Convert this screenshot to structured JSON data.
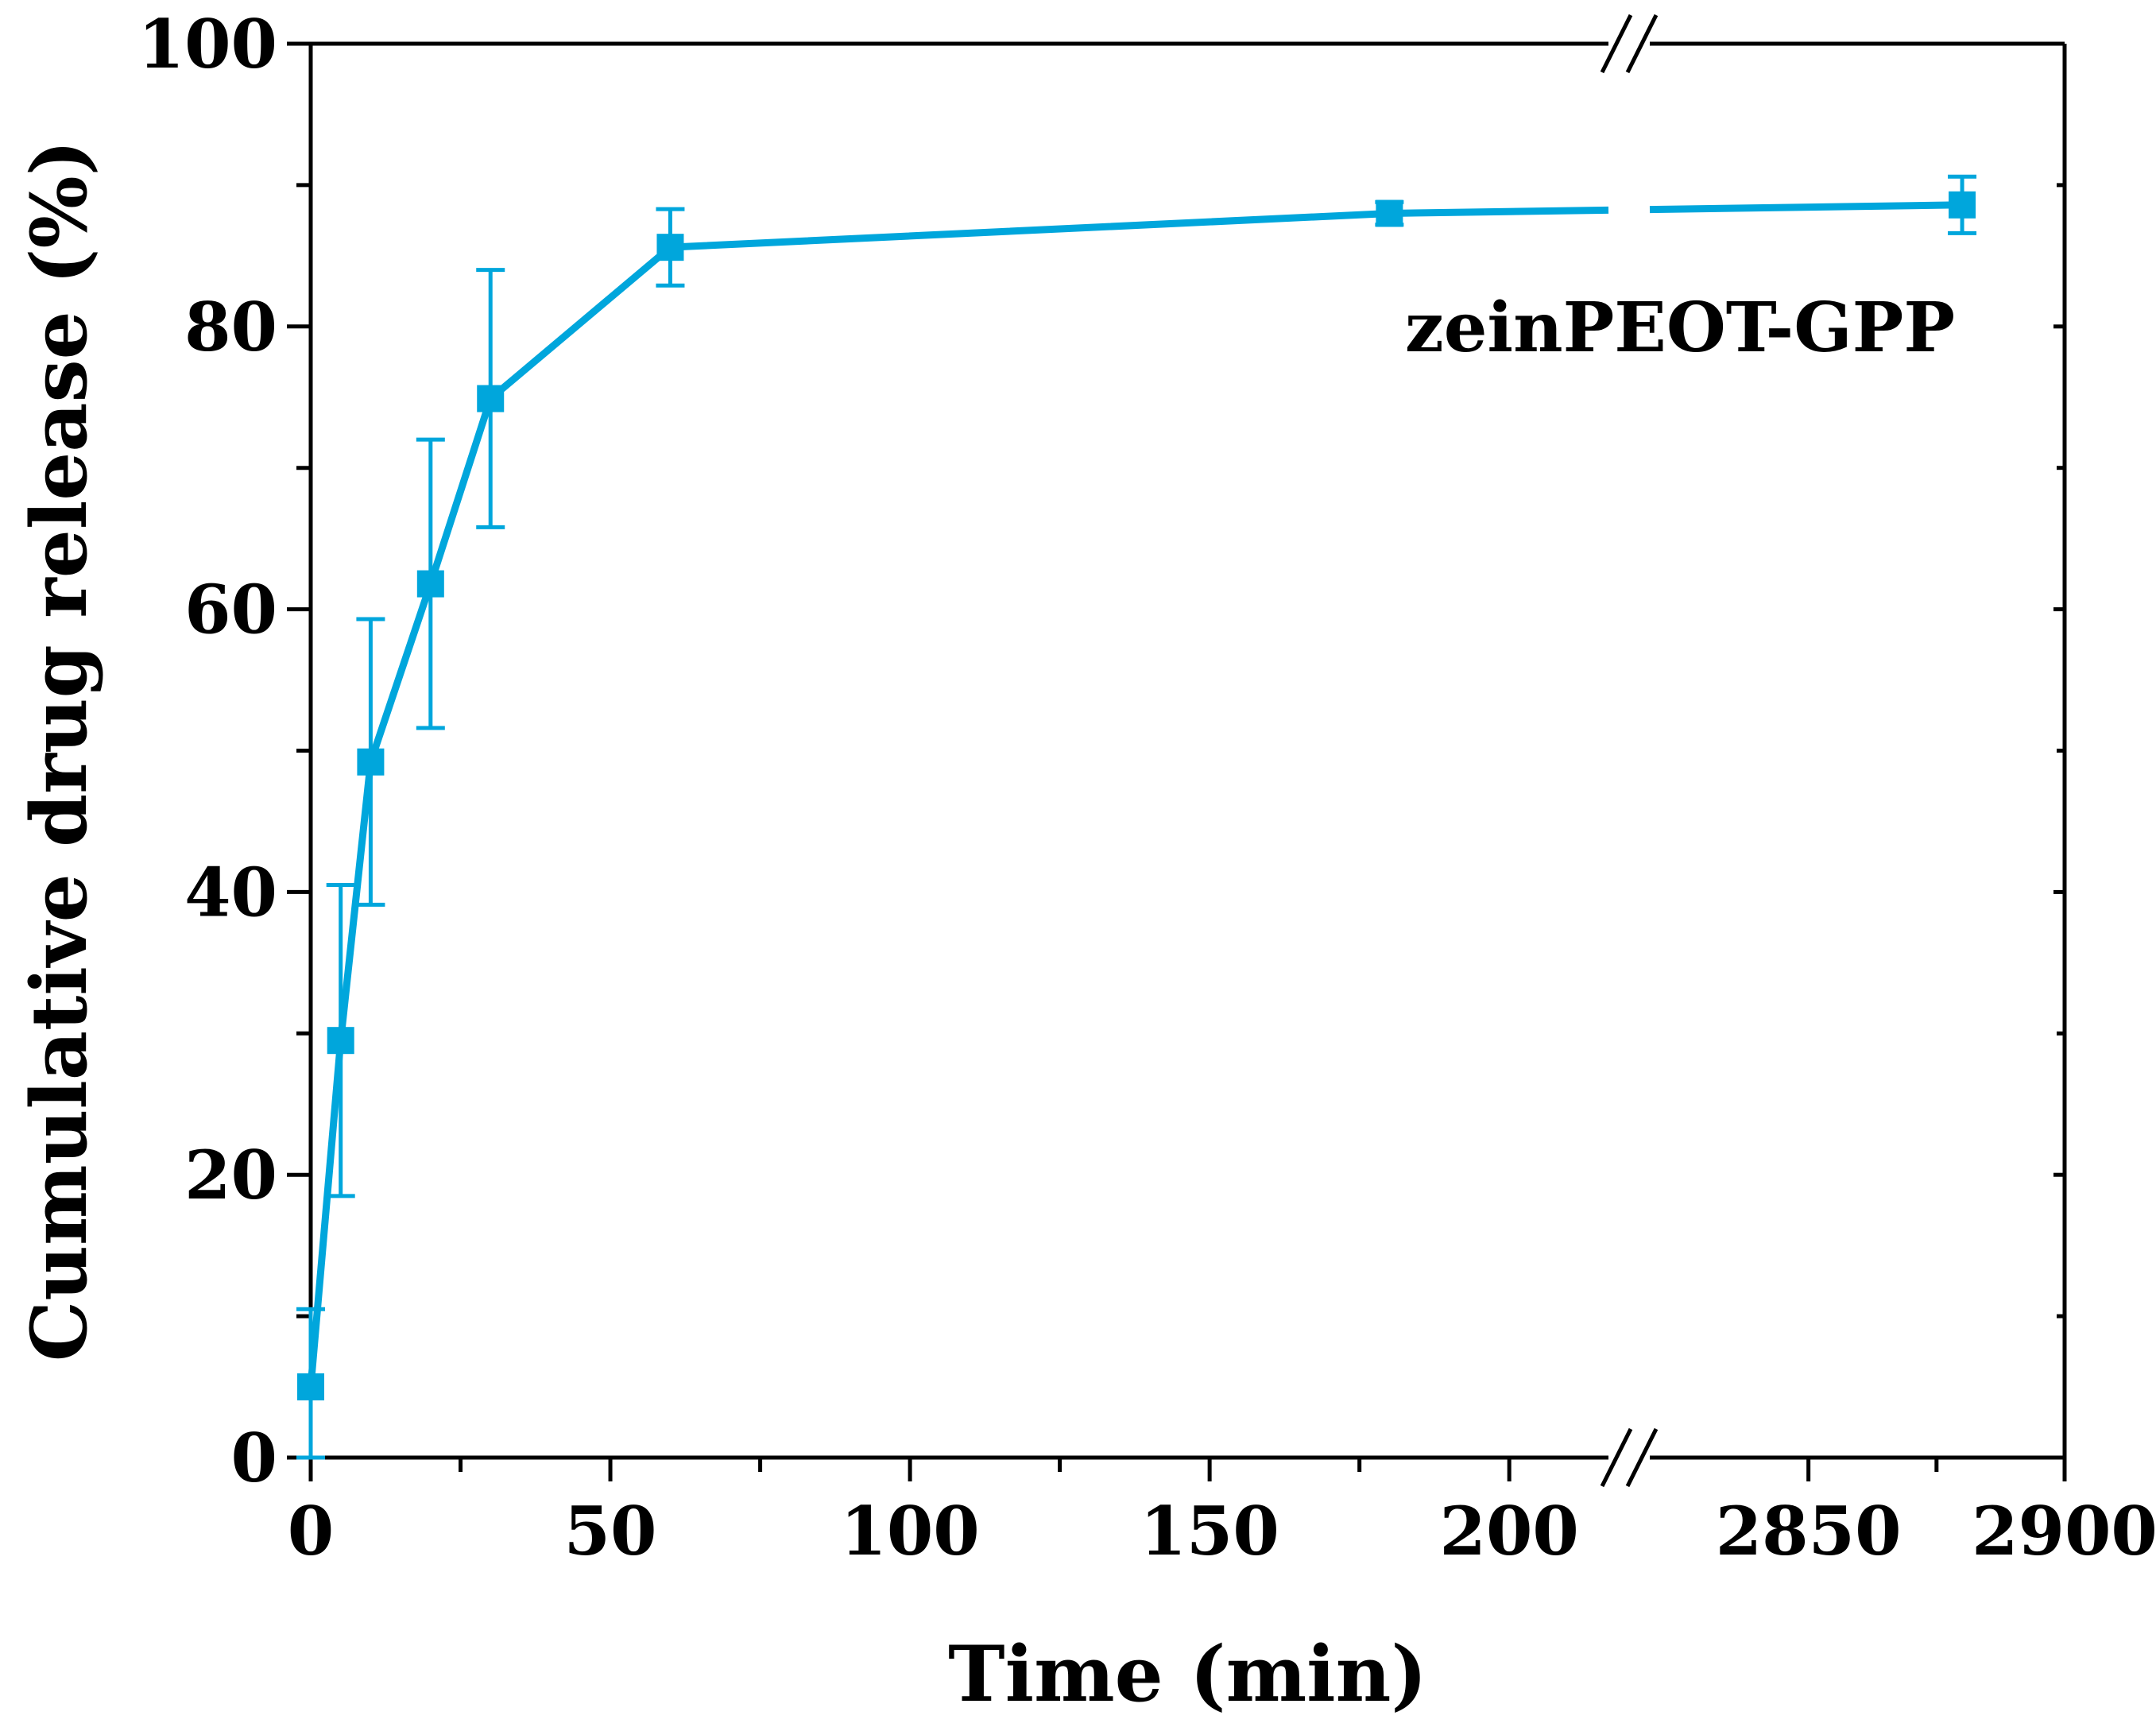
{
  "chart_data": {
    "type": "line",
    "title": "",
    "xlabel": "Time (min)",
    "ylabel": "Cumulative drug release (%)",
    "ylim": [
      0,
      100
    ],
    "x_axis": {
      "broken": true,
      "segments": [
        {
          "range": [
            0,
            220
          ],
          "ticks": [
            0,
            50,
            100,
            150,
            200
          ],
          "tick_labels": [
            "0",
            "50",
            "100",
            "150",
            "200"
          ]
        },
        {
          "range": [
            2815,
            2900
          ],
          "ticks": [
            2850,
            2900
          ],
          "tick_labels": [
            "2850",
            "2900"
          ]
        }
      ]
    },
    "y_ticks": [
      0,
      20,
      40,
      60,
      80,
      100
    ],
    "y_tick_labels": [
      "0",
      "20",
      "40",
      "60",
      "80",
      "100"
    ],
    "colors": {
      "series": "#00a6dc",
      "axis": "#000000"
    },
    "series": [
      {
        "name": "zeinPEOT-GPP",
        "x": [
          0,
          5,
          10,
          20,
          30,
          60,
          180,
          2880
        ],
        "y": [
          5.0,
          29.5,
          49.2,
          61.8,
          74.9,
          85.6,
          88.0,
          88.6
        ],
        "yerr": [
          5.5,
          11.0,
          10.1,
          10.2,
          9.1,
          2.7,
          0.8,
          2.0
        ]
      }
    ]
  }
}
